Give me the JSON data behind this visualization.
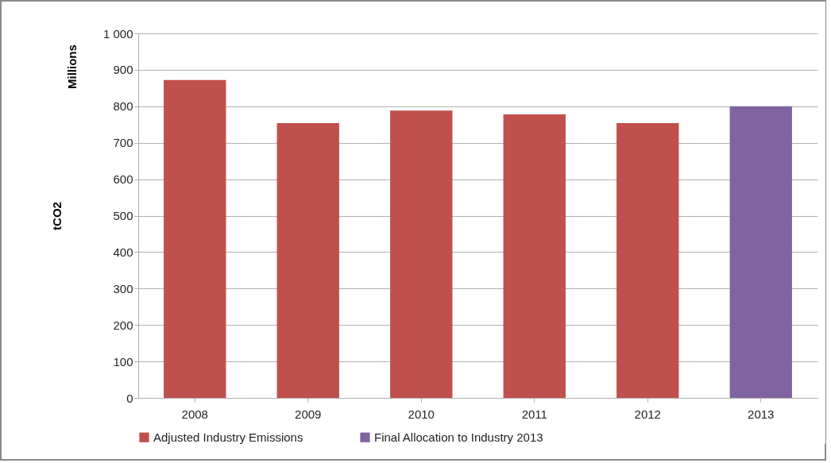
{
  "chart_data": {
    "type": "bar",
    "ylabel": "tCO2",
    "annotations": [
      "Millions"
    ],
    "categories": [
      "2008",
      "2009",
      "2010",
      "2011",
      "2012",
      "2013"
    ],
    "series": [
      {
        "name": "Adjusted Industry Emissions",
        "color": "#c0504d",
        "values": [
          872,
          754,
          788,
          778,
          754,
          null
        ]
      },
      {
        "name": "Final Allocation to Industry 2013",
        "color": "#8064a2",
        "values": [
          null,
          null,
          null,
          null,
          null,
          800
        ]
      }
    ],
    "ylim": [
      0,
      1000
    ],
    "yticks": [
      0,
      100,
      200,
      300,
      400,
      500,
      600,
      700,
      800,
      900,
      {
        "value": 1000,
        "label": "1 000"
      }
    ],
    "grid": "y",
    "legend": "bottom"
  }
}
